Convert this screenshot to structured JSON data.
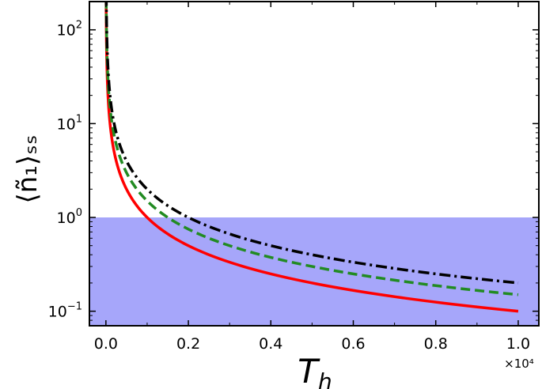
{
  "chart_data": {
    "type": "line",
    "xlabel_main": "T",
    "xlabel_sub": "h",
    "ylabel": "⟨ñ₁⟩ₛₛ",
    "x_offset_text": "×10⁴",
    "x_scale": "linear",
    "y_scale": "log",
    "xlim": [
      -0.04,
      1.05
    ],
    "ylim": [
      0.07,
      200
    ],
    "x_ticks": [
      0.0,
      0.2,
      0.4,
      0.6,
      0.8,
      1.0
    ],
    "x_tick_labels": [
      "0.0",
      "0.2",
      "0.4",
      "0.6",
      "0.8",
      "1.0"
    ],
    "y_ticks": [
      0.1,
      1,
      10,
      100
    ],
    "y_tick_labels": [
      {
        "base": "10",
        "exp": "−1"
      },
      {
        "base": "10",
        "exp": "0"
      },
      {
        "base": "10",
        "exp": "1"
      },
      {
        "base": "10",
        "exp": "2"
      }
    ],
    "shaded_region": {
      "y_from": 0.07,
      "y_to": 1.0,
      "color": "#a6a6fa"
    },
    "grid": false,
    "legend": "none",
    "series": [
      {
        "style": "solid",
        "color": "#ff0000",
        "c": 0.1,
        "x": [
          0.005,
          0.02,
          0.05,
          0.1,
          0.2,
          0.4,
          0.6,
          0.8,
          1.0
        ],
        "y": [
          20,
          5,
          2,
          1,
          0.5,
          0.25,
          0.167,
          0.125,
          0.1
        ]
      },
      {
        "style": "dashed",
        "color": "#228b22",
        "c": 0.15,
        "x": [
          0.005,
          0.02,
          0.05,
          0.1,
          0.2,
          0.4,
          0.6,
          0.8,
          1.0
        ],
        "y": [
          30,
          7.5,
          3,
          1.5,
          0.75,
          0.375,
          0.25,
          0.1875,
          0.15
        ]
      },
      {
        "style": "dashdot",
        "color": "#000000",
        "c": 0.2,
        "x": [
          0.005,
          0.02,
          0.05,
          0.1,
          0.2,
          0.4,
          0.6,
          0.8,
          1.0
        ],
        "y": [
          40,
          10,
          4,
          2,
          1,
          0.5,
          0.333,
          0.25,
          0.2
        ]
      }
    ]
  }
}
